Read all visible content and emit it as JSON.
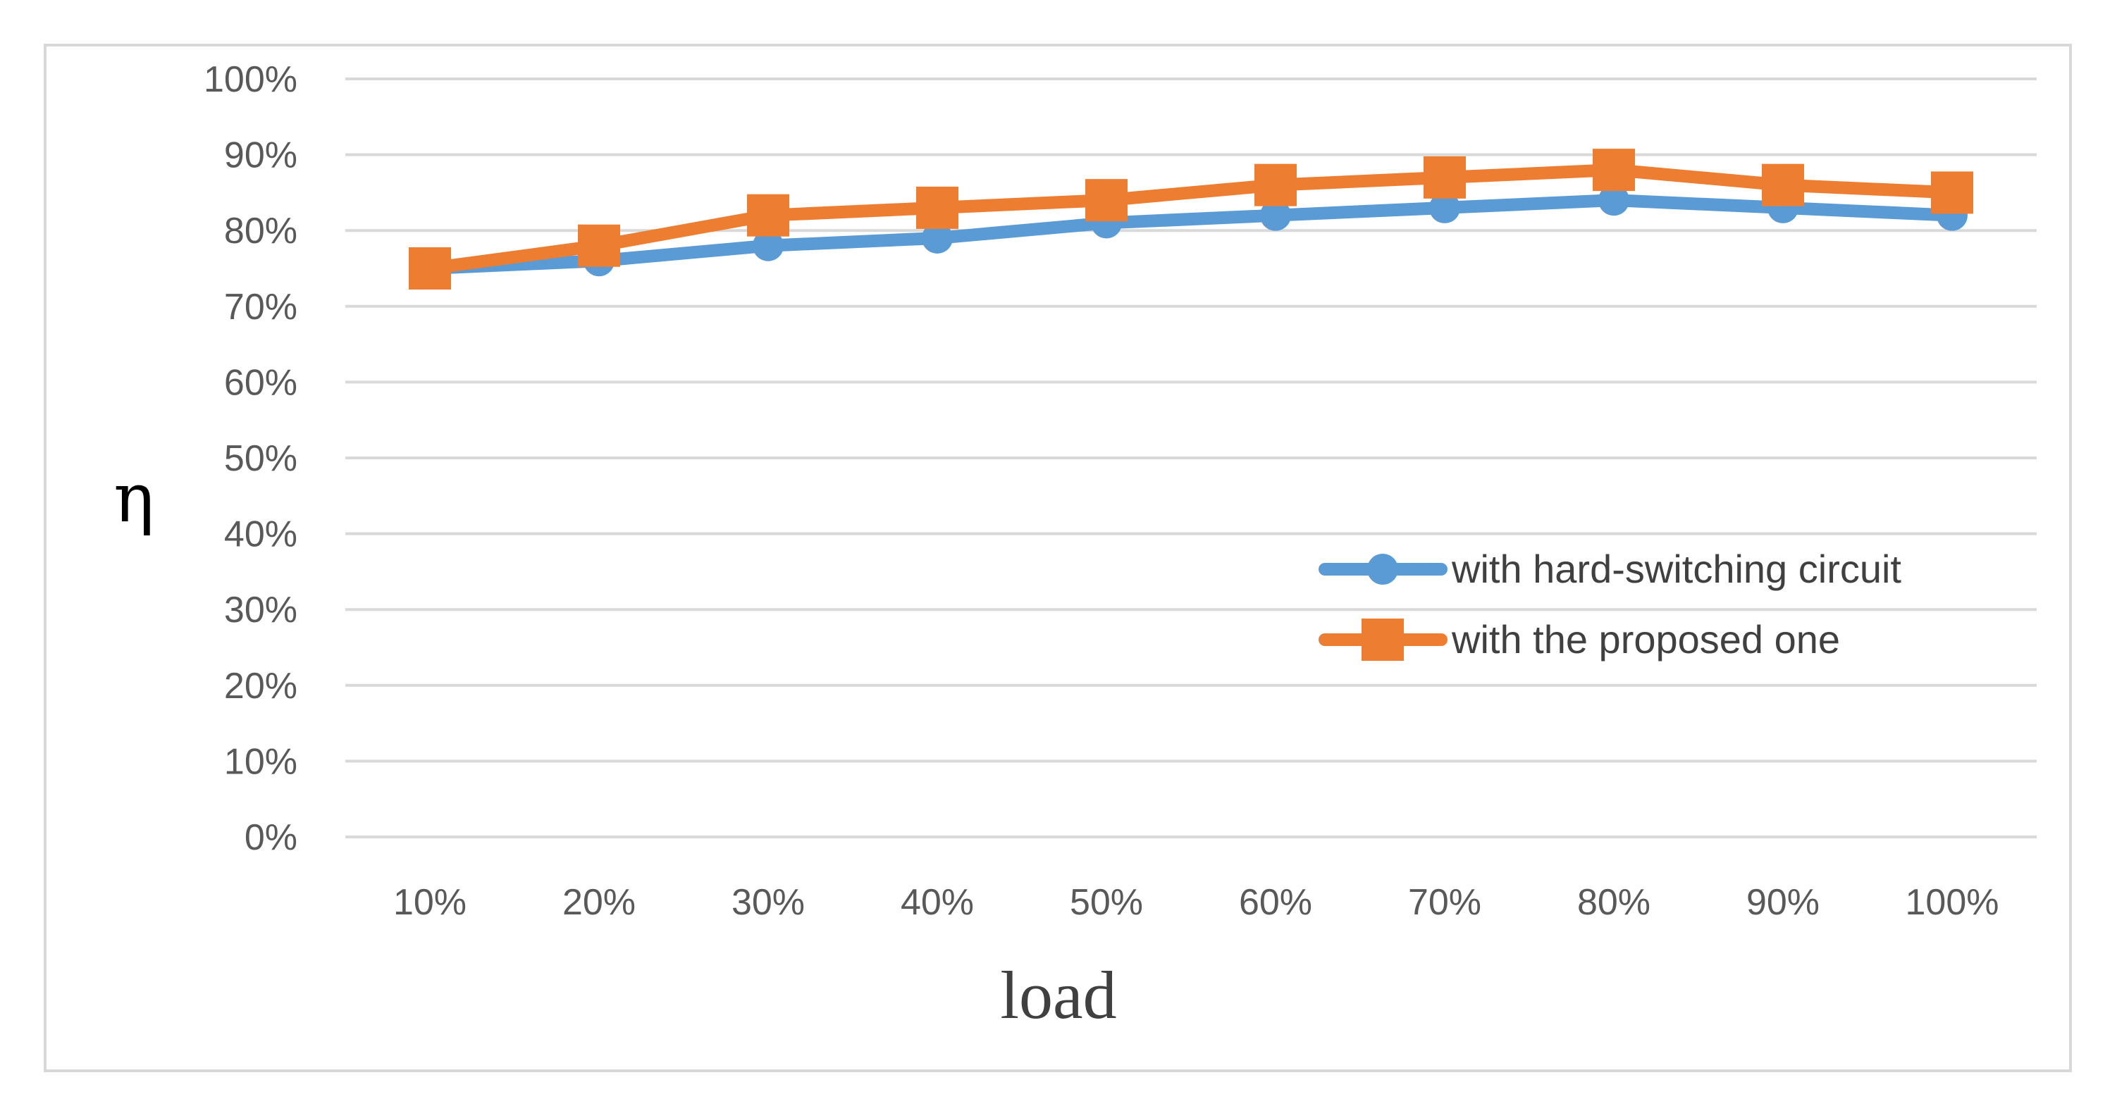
{
  "chart_data": {
    "type": "line",
    "title": "",
    "xlabel": "load",
    "ylabel": "η",
    "categories": [
      "10%",
      "20%",
      "30%",
      "40%",
      "50%",
      "60%",
      "70%",
      "80%",
      "90%",
      "100%"
    ],
    "yticks": [
      "0%",
      "10%",
      "20%",
      "30%",
      "40%",
      "50%",
      "60%",
      "70%",
      "80%",
      "90%",
      "100%"
    ],
    "ylim": [
      0,
      100
    ],
    "grid": true,
    "legend_position": "right",
    "series": [
      {
        "name": "with hard-switching circuit",
        "values": [
          75,
          76,
          78,
          79,
          81,
          82,
          83,
          84,
          83,
          82
        ],
        "color": "#5b9bd5",
        "marker": "circle"
      },
      {
        "name": "with the proposed one",
        "values": [
          75,
          78,
          82,
          83,
          84,
          86,
          87,
          88,
          86,
          85
        ],
        "color": "#ed7d31",
        "marker": "square"
      }
    ]
  }
}
